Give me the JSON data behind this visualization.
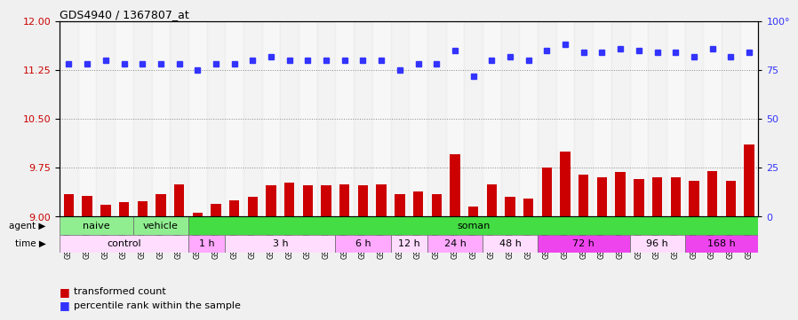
{
  "title": "GDS4940 / 1367807_at",
  "samples": [
    "GSM338857",
    "GSM338858",
    "GSM338859",
    "GSM338862",
    "GSM338864",
    "GSM338877",
    "GSM338880",
    "GSM338860",
    "GSM338861",
    "GSM338863",
    "GSM338865",
    "GSM338866",
    "GSM338867",
    "GSM338868",
    "GSM338869",
    "GSM338870",
    "GSM338871",
    "GSM338872",
    "GSM338873",
    "GSM338874",
    "GSM338875",
    "GSM338876",
    "GSM338878",
    "GSM338879",
    "GSM338881",
    "GSM338882",
    "GSM338883",
    "GSM338884",
    "GSM338885",
    "GSM338886",
    "GSM338887",
    "GSM338888",
    "GSM338889",
    "GSM338890",
    "GSM338891",
    "GSM338892",
    "GSM338893",
    "GSM338894"
  ],
  "red_values": [
    9.35,
    9.32,
    9.18,
    9.22,
    9.24,
    9.35,
    9.5,
    9.06,
    9.2,
    9.25,
    9.3,
    9.48,
    9.52,
    9.48,
    9.48,
    9.5,
    9.48,
    9.5,
    9.35,
    9.38,
    9.35,
    9.95,
    9.15,
    9.5,
    9.3,
    9.28,
    9.75,
    10.0,
    9.65,
    9.6,
    9.68,
    9.58,
    9.6,
    9.6,
    9.55,
    9.7,
    9.55,
    10.1
  ],
  "blue_values": [
    78,
    78,
    80,
    78,
    78,
    78,
    78,
    75,
    78,
    78,
    80,
    82,
    80,
    80,
    80,
    80,
    80,
    80,
    75,
    78,
    78,
    85,
    72,
    80,
    82,
    80,
    85,
    88,
    84,
    84,
    86,
    85,
    84,
    84,
    82,
    86,
    82,
    84
  ],
  "ylim_red": [
    9.0,
    12.0
  ],
  "ylim_blue": [
    0,
    100
  ],
  "yticks_red": [
    9.0,
    9.75,
    10.5,
    11.25,
    12.0
  ],
  "yticks_blue": [
    0,
    25,
    50,
    75,
    100
  ],
  "red_color": "#cc0000",
  "blue_color": "#3333ff",
  "agent_groups": [
    {
      "label": "naive",
      "color": "#90ee90",
      "span": [
        0,
        4
      ]
    },
    {
      "label": "vehicle",
      "color": "#90ee90",
      "span": [
        4,
        7
      ]
    },
    {
      "label": "soman",
      "color": "#44dd44",
      "span": [
        7,
        38
      ]
    }
  ],
  "time_groups": [
    {
      "label": "control",
      "color": "#ffddff",
      "span": [
        0,
        7
      ]
    },
    {
      "label": "1 h",
      "color": "#ffaaff",
      "span": [
        7,
        9
      ]
    },
    {
      "label": "3 h",
      "color": "#ffddff",
      "span": [
        9,
        15
      ]
    },
    {
      "label": "6 h",
      "color": "#ffaaff",
      "span": [
        15,
        18
      ]
    },
    {
      "label": "12 h",
      "color": "#ffddff",
      "span": [
        18,
        20
      ]
    },
    {
      "label": "24 h",
      "color": "#ffaaff",
      "span": [
        20,
        23
      ]
    },
    {
      "label": "48 h",
      "color": "#ffddff",
      "span": [
        23,
        26
      ]
    },
    {
      "label": "72 h",
      "color": "#ee44ee",
      "span": [
        26,
        31
      ]
    },
    {
      "label": "96 h",
      "color": "#ffddff",
      "span": [
        31,
        34
      ]
    },
    {
      "label": "168 h",
      "color": "#ee44ee",
      "span": [
        34,
        38
      ]
    }
  ],
  "bg_color": "#f0f0f0",
  "plot_bg": "#ffffff",
  "grid_color": "#888888"
}
